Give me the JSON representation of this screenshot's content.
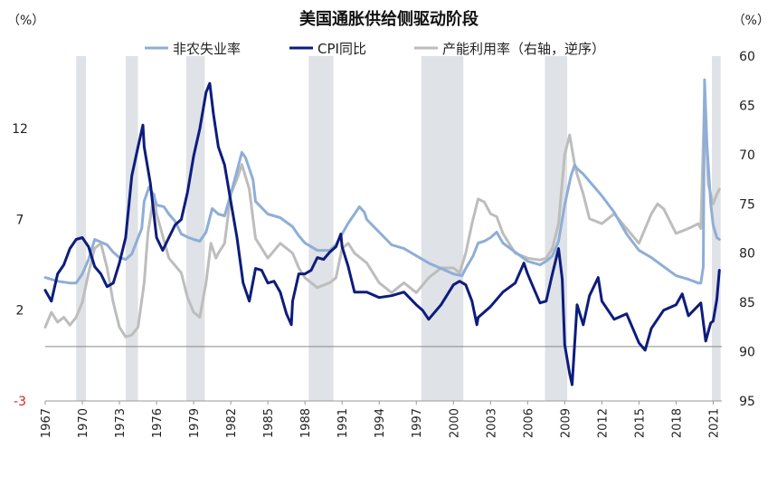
{
  "chart_data": {
    "type": "line",
    "title": "美国通胀供给侧驱动阶段",
    "left_axis": {
      "unit": "（%）",
      "ylim": [
        -3,
        16
      ],
      "ticks": [
        {
          "value": -3,
          "label": "-3",
          "color": "#d9231e"
        },
        {
          "value": 2,
          "label": "2",
          "color": "#222222"
        },
        {
          "value": 7,
          "label": "7",
          "color": "#222222"
        },
        {
          "value": 12,
          "label": "12",
          "color": "#222222"
        }
      ]
    },
    "right_axis": {
      "unit": "（%）",
      "inverted": true,
      "ylim": [
        60,
        95
      ],
      "ticks": [
        {
          "value": 60,
          "label": "60"
        },
        {
          "value": 65,
          "label": "65"
        },
        {
          "value": 70,
          "label": "70"
        },
        {
          "value": 75,
          "label": "75"
        },
        {
          "value": 80,
          "label": "80"
        },
        {
          "value": 85,
          "label": "85"
        },
        {
          "value": 90,
          "label": "90"
        },
        {
          "value": 95,
          "label": "95"
        }
      ]
    },
    "x_axis": {
      "range": [
        1967,
        2021.7
      ],
      "ticks": [
        {
          "value": 1967,
          "label": "1967"
        },
        {
          "value": 1970,
          "label": "1970"
        },
        {
          "value": 1973,
          "label": "1973"
        },
        {
          "value": 1976,
          "label": "1976"
        },
        {
          "value": 1979,
          "label": "1979"
        },
        {
          "value": 1982,
          "label": "1982"
        },
        {
          "value": 1985,
          "label": "1985"
        },
        {
          "value": 1988,
          "label": "1988"
        },
        {
          "value": 1991,
          "label": "1991"
        },
        {
          "value": 1994,
          "label": "1994"
        },
        {
          "value": 1997,
          "label": "1997"
        },
        {
          "value": 2000,
          "label": "2000"
        },
        {
          "value": 2003,
          "label": "2003"
        },
        {
          "value": 2006,
          "label": "2006"
        },
        {
          "value": 2009,
          "label": "2009"
        },
        {
          "value": 2012,
          "label": "2012"
        },
        {
          "value": 2015,
          "label": "2015"
        },
        {
          "value": 2018,
          "label": "2018"
        },
        {
          "value": 2021,
          "label": "2021"
        }
      ]
    },
    "shaded_periods": [
      [
        1969.5,
        1970.3
      ],
      [
        1973.5,
        1974.5
      ],
      [
        1978.4,
        1979.9
      ],
      [
        1988.3,
        1990.3
      ],
      [
        1997.4,
        2000.8
      ],
      [
        2007.4,
        2009.2
      ],
      [
        2020.9,
        2021.6
      ]
    ],
    "series": [
      {
        "name": "非农失业率",
        "axis": "left",
        "color": "#8eaed6",
        "x": [
          1967,
          1968,
          1969,
          1969.5,
          1970,
          1970.5,
          1971,
          1972,
          1972.5,
          1973,
          1973.5,
          1974,
          1974.8,
          1975,
          1975.4,
          1975.8,
          1976,
          1976.6,
          1977,
          1977.5,
          1978,
          1978.6,
          1979,
          1979.5,
          1980,
          1980.5,
          1981,
          1981.5,
          1982,
          1982.4,
          1982.9,
          1983.2,
          1983.8,
          1984,
          1985,
          1986,
          1987,
          1987.5,
          1988,
          1989,
          1990,
          1990.5,
          1991,
          1991.5,
          1992,
          1992.4,
          1992.8,
          1993,
          1994,
          1995,
          1996,
          1997,
          1998,
          1999,
          2000,
          2000.7,
          2001,
          2001.6,
          2002,
          2002.5,
          2003,
          2003.5,
          2004,
          2005,
          2006,
          2007,
          2007.5,
          2008,
          2008.5,
          2009,
          2009.5,
          2009.8,
          2010,
          2010.5,
          2011,
          2012,
          2013,
          2014,
          2015,
          2016,
          2017,
          2018,
          2019,
          2019.8,
          2020,
          2020.2,
          2020.3,
          2020.5,
          2020.8,
          2021,
          2021.3,
          2021.5
        ],
        "y": [
          3.8,
          3.6,
          3.5,
          3.5,
          4.0,
          4.8,
          5.9,
          5.6,
          5.2,
          4.9,
          4.8,
          5.1,
          6.5,
          8.0,
          8.8,
          8.3,
          7.8,
          7.7,
          7.3,
          6.9,
          6.2,
          6.0,
          5.9,
          5.8,
          6.3,
          7.6,
          7.3,
          7.2,
          8.4,
          9.4,
          10.7,
          10.4,
          9.2,
          8.0,
          7.3,
          7.1,
          6.6,
          6.1,
          5.7,
          5.3,
          5.3,
          5.6,
          6.2,
          6.8,
          7.3,
          7.7,
          7.4,
          7.0,
          6.3,
          5.6,
          5.4,
          5.0,
          4.6,
          4.3,
          4.0,
          3.9,
          4.3,
          5.0,
          5.7,
          5.8,
          6.0,
          6.3,
          5.7,
          5.2,
          4.7,
          4.5,
          4.7,
          5.0,
          5.8,
          7.8,
          9.4,
          10.0,
          9.8,
          9.5,
          9.1,
          8.3,
          7.4,
          6.2,
          5.3,
          4.9,
          4.4,
          3.9,
          3.7,
          3.5,
          3.5,
          4.4,
          14.7,
          11.1,
          7.9,
          6.7,
          6.0,
          5.9
        ]
      },
      {
        "name": "CPI同比",
        "axis": "left",
        "color": "#0d1c7c",
        "x": [
          1967,
          1967.5,
          1968,
          1968.5,
          1969,
          1969.5,
          1970,
          1970.5,
          1971,
          1971.5,
          1972,
          1972.5,
          1973,
          1973.5,
          1974,
          1974.5,
          1974.9,
          1975,
          1975.5,
          1976,
          1976.5,
          1977,
          1977.5,
          1978,
          1978.5,
          1979,
          1979.5,
          1980,
          1980.3,
          1980.6,
          1981,
          1981.5,
          1982,
          1982.5,
          1983,
          1983.5,
          1984,
          1984.5,
          1985,
          1985.5,
          1986,
          1986.5,
          1986.9,
          1987,
          1987.5,
          1988,
          1988.5,
          1989,
          1989.5,
          1990,
          1990.5,
          1990.9,
          1991,
          1991.5,
          1992,
          1993,
          1994,
          1995,
          1996,
          1997,
          1997.5,
          1998,
          1999,
          2000,
          2000.5,
          2001,
          2001.5,
          2001.9,
          2002,
          2003,
          2004,
          2005,
          2005.7,
          2006,
          2006.5,
          2007,
          2007.5,
          2008,
          2008.5,
          2008.8,
          2009,
          2009.4,
          2009.6,
          2010,
          2010.5,
          2011,
          2011.7,
          2012,
          2013,
          2014,
          2015,
          2015.5,
          2016,
          2017,
          2018,
          2018.5,
          2019,
          2020,
          2020.4,
          2020.8,
          2021,
          2021.3,
          2021.5
        ],
        "y": [
          3.1,
          2.5,
          4.0,
          4.5,
          5.4,
          5.9,
          6.0,
          5.5,
          4.4,
          4.0,
          3.3,
          3.5,
          4.6,
          6.0,
          9.4,
          11.0,
          12.2,
          11.0,
          9.0,
          6.0,
          5.3,
          6.0,
          6.7,
          7.0,
          8.5,
          10.5,
          12.0,
          14.0,
          14.5,
          12.8,
          11.0,
          10.0,
          8.0,
          6.0,
          3.5,
          2.5,
          4.3,
          4.2,
          3.5,
          3.6,
          3.0,
          1.8,
          1.2,
          2.5,
          4.0,
          4.0,
          4.2,
          4.9,
          4.8,
          5.2,
          5.5,
          6.2,
          5.5,
          4.4,
          3.0,
          3.0,
          2.7,
          2.8,
          3.0,
          2.3,
          2.0,
          1.5,
          2.3,
          3.4,
          3.6,
          3.4,
          2.5,
          1.2,
          1.6,
          2.2,
          3.0,
          3.5,
          4.6,
          4.0,
          3.2,
          2.4,
          2.5,
          4.0,
          5.4,
          3.7,
          0.1,
          -1.5,
          -2.1,
          2.3,
          1.2,
          2.8,
          3.8,
          2.5,
          1.5,
          1.8,
          0.2,
          -0.2,
          1.0,
          2.0,
          2.3,
          2.9,
          1.7,
          2.4,
          0.3,
          1.3,
          1.4,
          2.6,
          4.2
        ]
      },
      {
        "name": "产能利用率（右轴，逆序）",
        "axis": "right",
        "color": "#bdbdbd",
        "x": [
          1967,
          1967.5,
          1968,
          1968.5,
          1969,
          1969.5,
          1970,
          1970.5,
          1971,
          1971.5,
          1972,
          1972.5,
          1973,
          1973.5,
          1974,
          1974.5,
          1975,
          1975.3,
          1975.8,
          1976,
          1977,
          1978,
          1978.5,
          1979,
          1979.5,
          1980,
          1980.4,
          1980.8,
          1981,
          1981.5,
          1982,
          1982.5,
          1982.9,
          1983.5,
          1984,
          1985,
          1986,
          1987,
          1987.5,
          1988,
          1989,
          1990,
          1990.5,
          1991,
          1991.5,
          1992,
          1993,
          1994,
          1995,
          1996,
          1997,
          1998,
          1999,
          2000,
          2000.5,
          2001,
          2001.5,
          2002,
          2002.5,
          2003,
          2003.5,
          2004,
          2005,
          2006,
          2007,
          2007.5,
          2008,
          2008.5,
          2009,
          2009.4,
          2009.8,
          2010,
          2010.5,
          2011,
          2012,
          2013,
          2014,
          2015,
          2016,
          2016.5,
          2017,
          2018,
          2019,
          2019.8,
          2020,
          2020.3,
          2020.6,
          2021,
          2021.3,
          2021.5
        ],
        "y": [
          87.5,
          86.0,
          87.0,
          86.5,
          87.3,
          86.5,
          85.0,
          82.0,
          79.5,
          79.0,
          81.5,
          85.0,
          87.5,
          88.5,
          88.3,
          87.5,
          83.0,
          78.0,
          74.0,
          76.0,
          80.5,
          82.0,
          84.5,
          86.0,
          86.5,
          83.0,
          79.0,
          80.5,
          80.0,
          79.0,
          74.0,
          72.5,
          71.0,
          73.5,
          78.5,
          80.5,
          79.0,
          80.0,
          81.5,
          82.5,
          83.5,
          83.0,
          82.5,
          79.5,
          79.0,
          80.0,
          81.0,
          83.0,
          84.0,
          83.0,
          84.0,
          82.5,
          81.5,
          81.5,
          82.0,
          80.0,
          77.0,
          74.5,
          74.8,
          76.0,
          76.3,
          78.0,
          80.0,
          80.5,
          80.7,
          80.5,
          79.5,
          77.0,
          70.0,
          68.0,
          71.0,
          72.0,
          74.0,
          76.5,
          77.0,
          76.0,
          77.5,
          79.0,
          76.0,
          75.0,
          75.5,
          78.0,
          77.5,
          77.0,
          77.5,
          64.0,
          73.0,
          75.0,
          74.0,
          73.5
        ]
      }
    ]
  }
}
